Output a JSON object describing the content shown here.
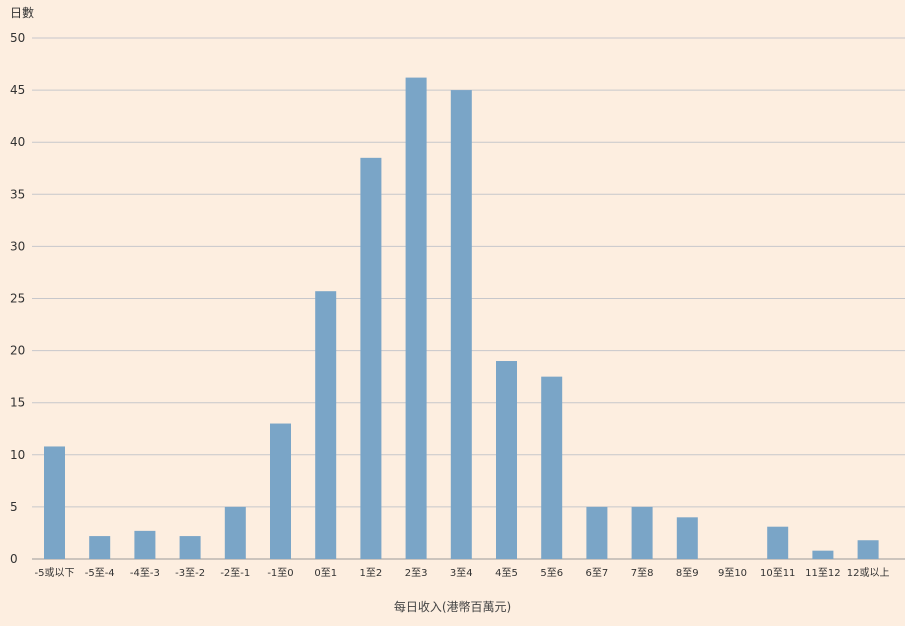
{
  "chart_data": {
    "type": "bar",
    "ylabel": "日數",
    "xlabel": "每日收入(港幣百萬元)",
    "ylim": [
      0,
      50
    ],
    "yticks": [
      0,
      5,
      10,
      15,
      20,
      25,
      30,
      35,
      40,
      45,
      50
    ],
    "categories": [
      "-5或以下",
      "-5至-4",
      "-4至-3",
      "-3至-2",
      "-2至-1",
      "-1至0",
      "0至1",
      "1至2",
      "2至3",
      "3至4",
      "4至5",
      "5至6",
      "6至7",
      "7至8",
      "8至9",
      "9至10",
      "10至11",
      "11至12",
      "12或以上"
    ],
    "values": [
      10.8,
      2.2,
      2.7,
      2.2,
      5.0,
      13.0,
      25.7,
      38.5,
      46.2,
      45.0,
      19.0,
      17.5,
      5.0,
      5.0,
      4.0,
      0,
      3.1,
      0.8,
      1.8
    ],
    "grid": true,
    "legend": "none",
    "colors": {
      "background": "#fdeee0",
      "bar": "#7aa5c7",
      "grid": "#c7c7cb",
      "text": "#333333"
    }
  }
}
